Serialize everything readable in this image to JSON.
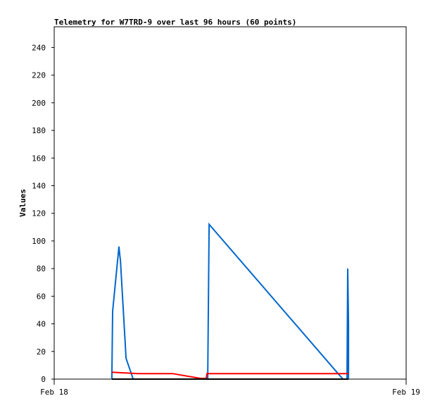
{
  "chart_data": {
    "type": "line",
    "title": "Telemetry for W7TRD-9 over last 96 hours (60 points)",
    "xlabel": "",
    "ylabel": "Values",
    "x_ticks": [
      "Feb 18",
      "Feb 19"
    ],
    "xlim": [
      "Feb 18 00:00",
      "Feb 19 00:00"
    ],
    "ylim": [
      0,
      255
    ],
    "y_ticks": [
      0,
      20,
      40,
      60,
      80,
      100,
      120,
      140,
      160,
      180,
      200,
      220,
      240
    ],
    "grid": false,
    "series": [
      {
        "color": "#0066cc",
        "points": [
          [
            "Feb 18 03:56",
            0
          ],
          [
            "Feb 18 03:59",
            49
          ],
          [
            "Feb 18 04:25",
            96
          ],
          [
            "Feb 18 04:28",
            90
          ],
          [
            "Feb 18 04:31",
            86
          ],
          [
            "Feb 18 04:54",
            15
          ],
          [
            "Feb 18 05:23",
            0
          ],
          [
            "Feb 18 10:28",
            0
          ],
          [
            "Feb 18 10:31",
            56
          ],
          [
            "Feb 18 10:34",
            112
          ],
          [
            "Feb 18 19:41",
            0
          ],
          [
            "Feb 18 19:58",
            0
          ],
          [
            "Feb 18 20:01",
            80
          ],
          [
            "Feb 18 20:04",
            40
          ],
          [
            "Feb 18 20:04",
            0
          ]
        ]
      },
      {
        "color": "#ff0000",
        "points": [
          [
            "Feb 18 03:56",
            5
          ],
          [
            "Feb 18 05:46",
            4
          ],
          [
            "Feb 18 08:04",
            4
          ],
          [
            "Feb 18 09:59",
            0.5
          ],
          [
            "Feb 18 10:22",
            0.5
          ],
          [
            "Feb 18 10:25",
            4
          ],
          [
            "Feb 18 19:49",
            4
          ],
          [
            "Feb 18 20:04",
            4
          ]
        ]
      },
      {
        "color": "#000000",
        "points": [
          [
            "Feb 18 03:56",
            0
          ],
          [
            "Feb 18 20:04",
            0
          ]
        ]
      }
    ]
  }
}
